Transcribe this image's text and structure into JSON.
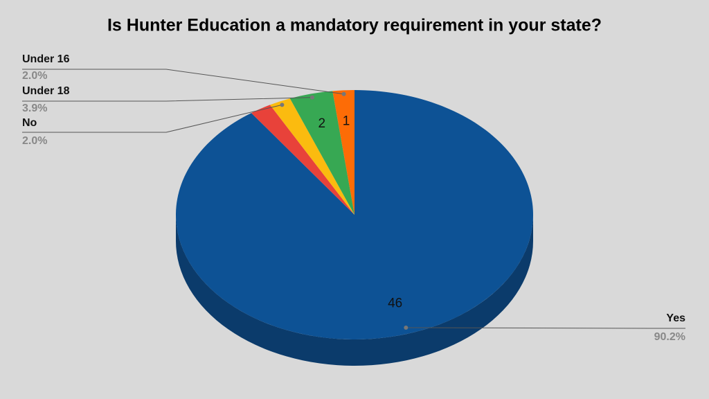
{
  "chart_data": {
    "type": "pie3d",
    "title": "Is Hunter Education a mandatory requirement in your state?",
    "categories": [
      "Yes",
      null,
      "No",
      "Under 18",
      "Under 16"
    ],
    "values": [
      46,
      1,
      1,
      2,
      1
    ],
    "value_labels": [
      "46",
      null,
      null,
      "2",
      "1"
    ],
    "percent_labels": [
      "90.2%",
      null,
      "2.0%",
      "3.9%",
      "2.0%"
    ],
    "colors": [
      "#0d5295",
      "#e8423a",
      "#fbbb0f",
      "#37a853",
      "#fd6c06"
    ],
    "side_color": "#0b3b6b"
  }
}
